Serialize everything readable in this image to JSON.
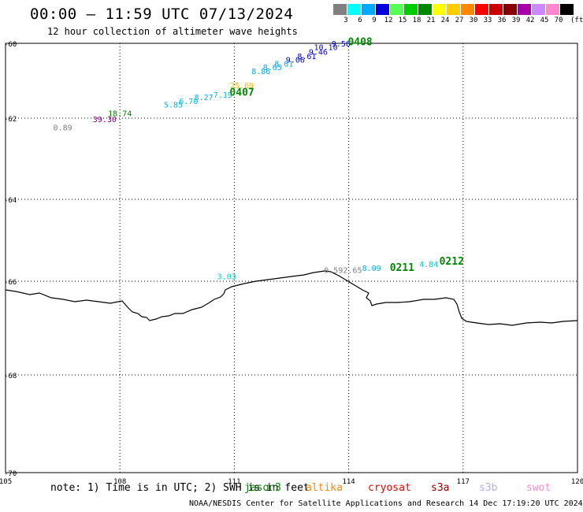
{
  "header": {
    "title": "00:00 – 11:59 UTC 07/13/2024",
    "subtitle": "12 hour collection of altimeter wave heights"
  },
  "legend": {
    "unit": "(ft)",
    "bins": [
      {
        "label": "3",
        "color": "#808080"
      },
      {
        "label": "6",
        "color": "#00ffff"
      },
      {
        "label": "9",
        "color": "#00aaff"
      },
      {
        "label": "12",
        "color": "#0000dd"
      },
      {
        "label": "15",
        "color": "#55ff55"
      },
      {
        "label": "18",
        "color": "#00cc00"
      },
      {
        "label": "21",
        "color": "#008800"
      },
      {
        "label": "24",
        "color": "#ffff00"
      },
      {
        "label": "27",
        "color": "#ffcc00"
      },
      {
        "label": "30",
        "color": "#ff8800"
      },
      {
        "label": "33",
        "color": "#ff0000"
      },
      {
        "label": "36",
        "color": "#cc0000"
      },
      {
        "label": "39",
        "color": "#880000"
      },
      {
        "label": "42",
        "color": "#aa00aa"
      },
      {
        "label": "45",
        "color": "#cc88ff"
      },
      {
        "label": "70",
        "color": "#ff88cc"
      },
      {
        "label": "",
        "color": "#000000"
      }
    ]
  },
  "map": {
    "lon_ticks": [
      "105",
      "108",
      "111",
      "114",
      "117",
      "120"
    ],
    "lat_ticks": [
      "-60",
      "-62",
      "-64",
      "-66",
      "-68",
      "-70"
    ]
  },
  "points": [
    {
      "value": "0.89",
      "lon": 106.5,
      "lat": -62.3,
      "color": "#808080"
    },
    {
      "value": "39.30",
      "lon": 107.6,
      "lat": -62.1,
      "color": "#880088"
    },
    {
      "value": "18.74",
      "lon": 108.0,
      "lat": -61.95,
      "color": "#008800"
    },
    {
      "value": "5.85",
      "lon": 109.4,
      "lat": -61.72,
      "color": "#00bbdd"
    },
    {
      "value": "6.70",
      "lon": 109.8,
      "lat": -61.62,
      "color": "#00bbdd"
    },
    {
      "value": "8.27",
      "lon": 110.2,
      "lat": -61.52,
      "color": "#00aaff"
    },
    {
      "value": "7.19",
      "lon": 110.7,
      "lat": -61.45,
      "color": "#00bbdd"
    },
    {
      "value": "25.69",
      "lon": 111.2,
      "lat": -61.2,
      "color": "#ffbb00"
    },
    {
      "value": "8.86",
      "lon": 111.7,
      "lat": -60.82,
      "color": "#00aaff"
    },
    {
      "value": "8.65",
      "lon": 112.0,
      "lat": -60.72,
      "color": "#00aaff"
    },
    {
      "value": "8.61",
      "lon": 112.3,
      "lat": -60.62,
      "color": "#00aaff"
    },
    {
      "value": "9.06",
      "lon": 112.6,
      "lat": -60.52,
      "color": "#0000dd"
    },
    {
      "value": "8.61",
      "lon": 112.9,
      "lat": -60.42,
      "color": "#0000dd"
    },
    {
      "value": "9.46",
      "lon": 113.2,
      "lat": -60.3,
      "color": "#0000dd"
    },
    {
      "value": "10.10",
      "lon": 113.4,
      "lat": -60.18,
      "color": "#0000dd"
    },
    {
      "value": "9.58",
      "lon": 113.8,
      "lat": -60.08,
      "color": "#0000dd"
    },
    {
      "value": "3.03",
      "lon": 110.8,
      "lat": -65.95,
      "color": "#00cccc"
    },
    {
      "value": "0.59",
      "lon": 113.6,
      "lat": -65.8,
      "color": "#808080"
    },
    {
      "value": "2.65",
      "lon": 114.1,
      "lat": -65.8,
      "color": "#808080"
    },
    {
      "value": "8.09",
      "lon": 114.6,
      "lat": -65.75,
      "color": "#00aaff"
    },
    {
      "value": "4.84",
      "lon": 116.1,
      "lat": -65.65,
      "color": "#00cccc"
    }
  ],
  "passes": [
    {
      "label": "0408",
      "lon": 114.3,
      "lat": -60.05,
      "color": "#008800"
    },
    {
      "label": "0407",
      "lon": 111.2,
      "lat": -61.4,
      "color": "#008800"
    },
    {
      "label": "0211",
      "lon": 115.4,
      "lat": -65.75,
      "color": "#008800"
    },
    {
      "label": "0212",
      "lon": 116.7,
      "lat": -65.6,
      "color": "#008800"
    }
  ],
  "footer": {
    "note": "note: 1) Time is in UTC; 2) SWH is in feet",
    "satellites": [
      {
        "name": "jason3",
        "color": "#008800"
      },
      {
        "name": "altika",
        "color": "#ff8800"
      },
      {
        "name": "cryosat",
        "color": "#ee0000"
      },
      {
        "name": "s3a",
        "color": "#880000"
      },
      {
        "name": "s3b",
        "color": "#bbaaff"
      },
      {
        "name": "swot",
        "color": "#ff88cc"
      }
    ],
    "credit": "NOAA/NESDIS Center for Satellite Applications and Research   14 Dec 17:19:20 UTC 2024"
  }
}
